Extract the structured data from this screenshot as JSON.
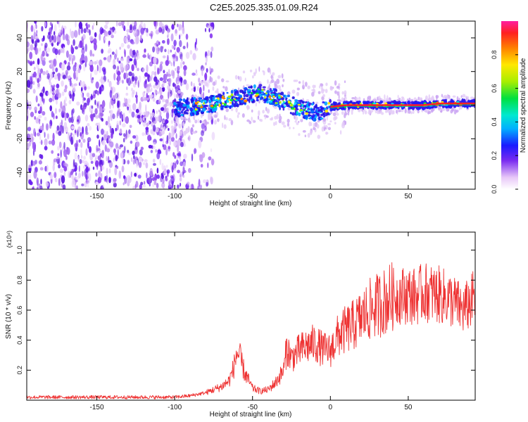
{
  "page": {
    "title": "C2E5.2025.335.01.09.R24",
    "accent_colors": {
      "scatter": "#6a1ef0",
      "snr_line": "#ee3333",
      "ridge": "#ff2222"
    }
  },
  "chart_data": [
    {
      "type": "heatmap",
      "panel": "spectrogram",
      "xlabel": "Height of straight line (km)",
      "ylabel": "Frequency (Hz)",
      "xlim": [
        -195,
        93
      ],
      "ylim": [
        -50,
        50
      ],
      "x_ticks": [
        -150,
        -100,
        -50,
        0,
        50
      ],
      "y_ticks": [
        -40,
        -20,
        0,
        20,
        40
      ],
      "grid": false,
      "noise_region_x": [
        -195,
        -83
      ],
      "signal_region_x": [
        -100,
        93
      ],
      "ridge": {
        "x": [
          -100,
          -90,
          -80,
          -70,
          -60,
          -50,
          -45,
          -40,
          -35,
          -30,
          -25,
          -20,
          -15,
          -10,
          -5,
          0,
          10,
          20,
          30,
          40,
          50,
          60,
          70,
          80,
          90
        ],
        "freq": [
          -2,
          -1,
          0,
          2,
          4,
          6,
          7,
          6,
          4,
          2,
          0,
          -2,
          -3,
          -4,
          -3,
          -1,
          0,
          0,
          0,
          0,
          0,
          0,
          1,
          1,
          1
        ]
      },
      "colorbar": {
        "label": "Normalized spectral amplitude",
        "range": [
          0,
          1
        ],
        "ticks": [
          "0.0",
          "0.2",
          "0.4",
          "0.6",
          "0.8"
        ]
      }
    },
    {
      "type": "line",
      "panel": "snr",
      "xlabel": "Height of straight line (km)",
      "ylabel": "SNR (10 * v/v)",
      "scale_label": "(x10⁴)",
      "xlim": [
        -195,
        93
      ],
      "ylim": [
        0,
        1.12
      ],
      "x_ticks": [
        -150,
        -100,
        -50,
        0,
        50
      ],
      "y_ticks": [
        0.2,
        0.4,
        0.6,
        0.8,
        1.0
      ],
      "grid": false,
      "series": [
        {
          "x": [
            -195,
            -180,
            -160,
            -140,
            -120,
            -100,
            -95,
            -90,
            -85,
            -80,
            -75,
            -70,
            -65,
            -62,
            -60,
            -58,
            -55,
            -52,
            -50,
            -45,
            -40,
            -35,
            -30,
            -28,
            -25,
            -20,
            -15,
            -10,
            -5,
            0,
            5,
            10,
            15,
            20,
            25,
            30,
            35,
            40,
            45,
            50,
            55,
            60,
            65,
            70,
            75,
            80,
            85,
            90,
            93
          ],
          "values": [
            0.02,
            0.02,
            0.02,
            0.02,
            0.02,
            0.02,
            0.025,
            0.03,
            0.04,
            0.05,
            0.07,
            0.09,
            0.13,
            0.22,
            0.32,
            0.28,
            0.18,
            0.12,
            0.08,
            0.06,
            0.07,
            0.12,
            0.2,
            0.35,
            0.28,
            0.33,
            0.36,
            0.38,
            0.34,
            0.33,
            0.43,
            0.47,
            0.5,
            0.55,
            0.6,
            0.63,
            0.66,
            0.69,
            0.7,
            0.7,
            0.69,
            0.72,
            0.71,
            0.7,
            0.68,
            0.65,
            0.6,
            0.65,
            0.7
          ]
        }
      ]
    }
  ]
}
